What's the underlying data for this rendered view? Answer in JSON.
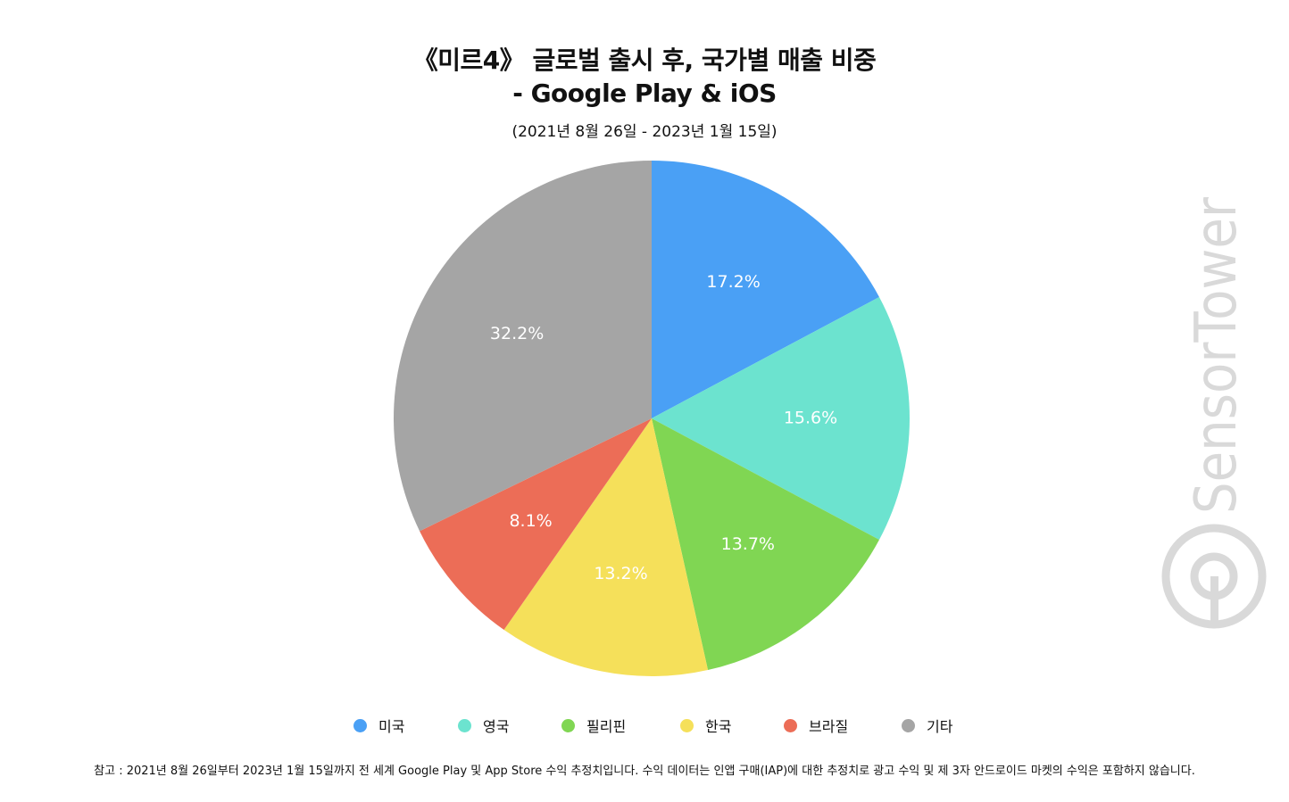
{
  "title_line1": "《미르4》 글로벌 출시 후, 국가별 매출 비중",
  "title_line2": "- Google Play & iOS",
  "subtitle": "(2021년 8월 26일 - 2023년 1월 15일)",
  "chart_data": {
    "type": "pie",
    "title": "《미르4》 글로벌 출시 후, 국가별 매출 비중 - Google Play & iOS",
    "subtitle": "(2021년 8월 26일 - 2023년 1월 15일)",
    "start": "top, clockwise",
    "legend_position": "bottom",
    "slices": [
      {
        "name": "미국",
        "value": 17.2,
        "label": "17.2%",
        "color": "#4aa0f5"
      },
      {
        "name": "영국",
        "value": 15.6,
        "label": "15.6%",
        "color": "#6ce3cf"
      },
      {
        "name": "필리핀",
        "value": 13.7,
        "label": "13.7%",
        "color": "#80d653"
      },
      {
        "name": "한국",
        "value": 13.2,
        "label": "13.2%",
        "color": "#f5e05a"
      },
      {
        "name": "브라질",
        "value": 8.1,
        "label": "8.1%",
        "color": "#ec6d57"
      },
      {
        "name": "기타",
        "value": 32.2,
        "label": "32.2%",
        "color": "#a5a5a5"
      }
    ]
  },
  "legend": [
    {
      "label": "미국",
      "color": "#4aa0f5"
    },
    {
      "label": "영국",
      "color": "#6ce3cf"
    },
    {
      "label": "필리핀",
      "color": "#80d653"
    },
    {
      "label": "한국",
      "color": "#f5e05a"
    },
    {
      "label": "브라질",
      "color": "#ec6d57"
    },
    {
      "label": "기타",
      "color": "#a5a5a5"
    }
  ],
  "footnote": "참고 : 2021년 8월 26일부터 2023년 1월 15일까지 전 세계 Google Play 및 App Store 수익 추정치입니다. 수익 데이터는 인앱 구매(IAP)에 대한 추정치로 광고 수익 및 제 3자 안드로이드 마켓의 수익은 포함하지 않습니다.",
  "watermark": {
    "text": "SensorTower",
    "icon": "sensor-tower-logo-icon",
    "color": "#d9d9d9"
  }
}
